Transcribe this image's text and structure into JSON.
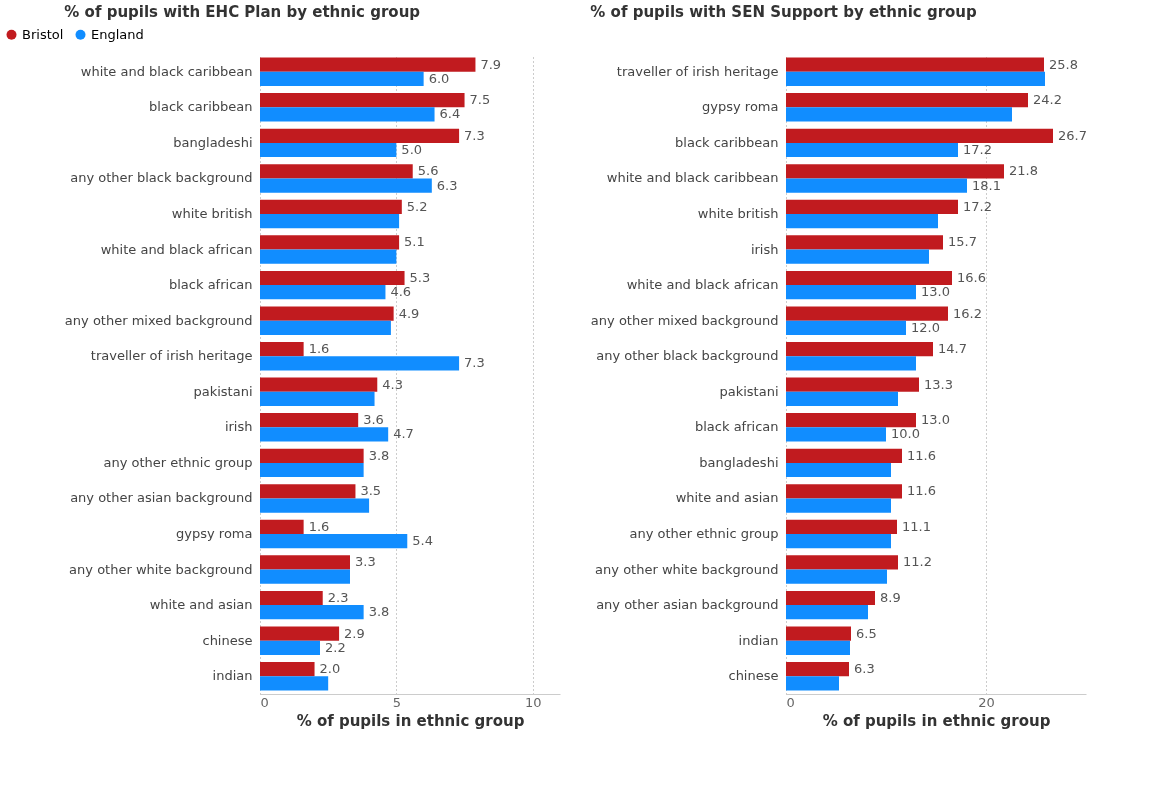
{
  "chart_data": [
    {
      "type": "bar",
      "orientation": "horizontal",
      "title": "% of pupils with EHC Plan by ethnic group",
      "xlabel": "% of pupils in ethnic group",
      "categories": [
        "white and black caribbean",
        "black caribbean",
        "bangladeshi",
        "any other black background",
        "white british",
        "white and black african",
        "black african",
        "any other mixed background",
        "traveller of irish heritage",
        "pakistani",
        "irish",
        "any other ethnic group",
        "any other asian background",
        "gypsy roma",
        "any other white background",
        "white and asian",
        "chinese",
        "indian"
      ],
      "series": [
        {
          "name": "Bristol",
          "color": "#c11b1f",
          "values": [
            7.9,
            7.5,
            7.3,
            5.6,
            5.2,
            5.1,
            5.3,
            4.9,
            1.6,
            4.3,
            3.6,
            3.8,
            3.5,
            1.6,
            3.3,
            2.3,
            2.9,
            2.0
          ],
          "value_labels": [
            "7.9",
            "7.5",
            "7.3",
            "5.6",
            "5.2",
            "5.1",
            "5.3",
            "4.9",
            "1.6",
            "4.3",
            "3.6",
            "3.8",
            "3.5",
            "1.6",
            "3.3",
            "2.3",
            "2.9",
            "2.0"
          ]
        },
        {
          "name": "England",
          "color": "#118dff",
          "values": [
            6.0,
            6.4,
            5.0,
            6.3,
            5.1,
            5.0,
            4.6,
            4.8,
            7.3,
            4.2,
            4.7,
            3.8,
            4.0,
            5.4,
            3.3,
            3.8,
            2.2,
            2.5
          ],
          "value_labels": [
            "6.0",
            "6.4",
            "5.0",
            "6.3",
            null,
            null,
            "4.6",
            null,
            "7.3",
            null,
            "4.7",
            null,
            null,
            "5.4",
            null,
            "3.8",
            "2.2",
            null
          ]
        }
      ],
      "xlim": [
        0,
        11
      ],
      "xticks": [
        0,
        5,
        10
      ],
      "grid": "x",
      "legend": "top left"
    },
    {
      "type": "bar",
      "orientation": "horizontal",
      "title": "% of pupils with SEN Support by ethnic group",
      "xlabel": "% of pupils in ethnic group",
      "categories": [
        "traveller of irish heritage",
        "gypsy roma",
        "black caribbean",
        "white and black caribbean",
        "white british",
        "irish",
        "white and black african",
        "any other mixed background",
        "any other black background",
        "pakistani",
        "black african",
        "bangladeshi",
        "white and asian",
        "any other ethnic group",
        "any other white background",
        "any other asian background",
        "indian",
        "chinese"
      ],
      "series": [
        {
          "name": "Bristol",
          "color": "#c11b1f",
          "values": [
            25.8,
            24.2,
            26.7,
            21.8,
            17.2,
            15.7,
            16.6,
            16.2,
            14.7,
            13.3,
            13.0,
            11.6,
            11.6,
            11.1,
            11.2,
            8.9,
            6.5,
            6.3
          ],
          "value_labels": [
            "25.8",
            "24.2",
            "26.7",
            "21.8",
            "17.2",
            "15.7",
            "16.6",
            "16.2",
            "14.7",
            "13.3",
            "13.0",
            "11.6",
            "11.6",
            "11.1",
            "11.2",
            "8.9",
            "6.5",
            "6.3"
          ]
        },
        {
          "name": "England",
          "color": "#118dff",
          "values": [
            25.9,
            22.6,
            17.2,
            18.1,
            15.2,
            14.3,
            13.0,
            12.0,
            13.0,
            11.2,
            10.0,
            10.5,
            10.5,
            10.5,
            10.1,
            8.2,
            6.4,
            5.3
          ],
          "value_labels": [
            null,
            null,
            "17.2",
            "18.1",
            null,
            null,
            "13.0",
            "12.0",
            null,
            null,
            "10.0",
            null,
            null,
            null,
            null,
            null,
            null,
            null
          ]
        }
      ],
      "xlim": [
        0,
        30
      ],
      "xticks": [
        0,
        20
      ],
      "grid": "x",
      "legend": "top left"
    }
  ]
}
